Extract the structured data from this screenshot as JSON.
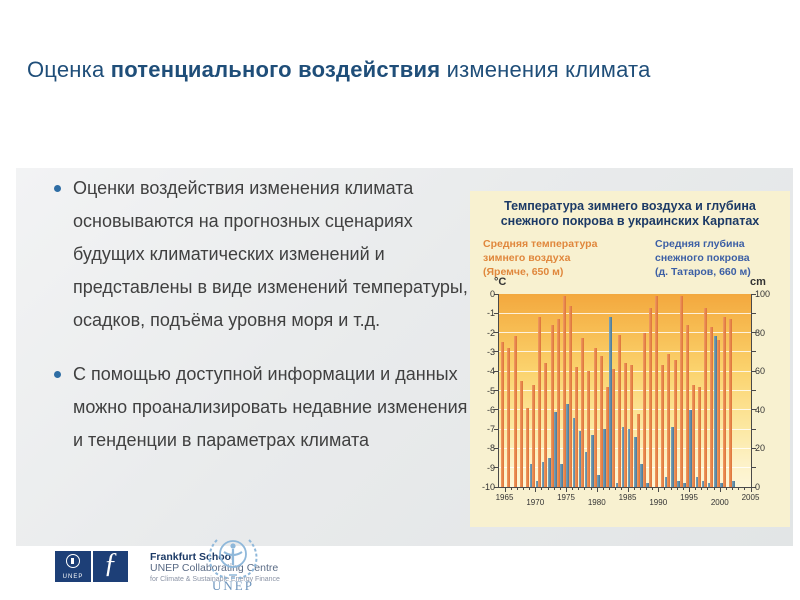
{
  "slide": {
    "title_prefix": "Оценка ",
    "title_bold": "потенциального воздействия",
    "title_suffix": " изменения климата"
  },
  "bullets": [
    "Оценки воздействия изменения климата основываются на прогнозных сценариях будущих климатических изменений и представлены в виде изменений температуры, осадков, подъёма уровня моря и т.д.",
    "С помощью доступной информации и данных можно проанализировать недавние изменения и тенденции в параметрах климата"
  ],
  "chart": {
    "title_line1": "Температура зимнего воздуха и глубина",
    "title_line2": "снежного покрова в украинских Карпатах",
    "legend_temp_l1": "Средняя температура",
    "legend_temp_l2": "зимнего воздуха",
    "legend_temp_l3": "(Яремче, 650 м)",
    "legend_snow_l1": "Средняя глубина",
    "legend_snow_l2": "снежного покрова",
    "legend_snow_l3": "(д. Татаров, 660 м)",
    "unit_left": "°C",
    "unit_right": "cm",
    "colors": {
      "temp_bar": "#dd7338",
      "snow_bar": "#4a7795",
      "legend_temp_text": "#e0873c",
      "legend_snow_text": "#3c5fa5",
      "panel_bg": "#f8f1d0",
      "plot_top": "#f3a83e",
      "plot_bottom": "#fdf6d8"
    }
  },
  "chart_data": {
    "type": "bar",
    "title": "Температура зимнего воздуха и глубина снежного покрова в украинских Карпатах",
    "x": [
      1965,
      1966,
      1967,
      1968,
      1969,
      1970,
      1971,
      1972,
      1973,
      1974,
      1975,
      1976,
      1977,
      1978,
      1979,
      1980,
      1981,
      1982,
      1983,
      1984,
      1985,
      1986,
      1987,
      1988,
      1989,
      1990,
      1991,
      1992,
      1993,
      1994,
      1995,
      1996,
      1997,
      1998,
      1999,
      2000,
      2001,
      2002
    ],
    "series": [
      {
        "name": "Средняя температура зимнего воздуха (Яремче, 650 м)",
        "unit": "°C",
        "color": "#dd7338",
        "values": [
          -2.5,
          -2.8,
          -2.2,
          -4.5,
          -5.9,
          -4.7,
          -1.2,
          -3.6,
          -1.6,
          -1.3,
          -0.1,
          -0.6,
          -3.8,
          -2.3,
          -4.0,
          -2.8,
          -3.2,
          -4.8,
          -3.9,
          -2.1,
          -3.6,
          -3.7,
          -6.2,
          -2.0,
          -0.7,
          -0.1,
          -3.7,
          -3.1,
          -3.4,
          -0.1,
          -1.6,
          -4.7,
          -4.8,
          -0.7,
          -1.7,
          -2.4,
          -1.2,
          -1.3
        ]
      },
      {
        "name": "Средняя глубина снежного покрова (д. Татаров, 660 м)",
        "unit": "cm",
        "color": "#4a7795",
        "values": [
          0,
          0,
          0,
          0,
          12,
          3,
          13,
          15,
          39,
          12,
          43,
          36,
          29,
          18,
          27,
          6,
          30,
          88,
          2,
          31,
          30,
          26,
          12,
          2,
          0,
          0,
          5,
          31,
          3,
          2,
          40,
          5,
          3,
          2,
          78,
          2,
          0,
          3
        ]
      }
    ],
    "left_axis": {
      "unit": "°C",
      "min": -10,
      "max": 0,
      "ticks": [
        0,
        -1,
        -2,
        -3,
        -4,
        -5,
        -6,
        -7,
        -8,
        -9,
        -10
      ]
    },
    "right_axis": {
      "unit": "cm",
      "min": 0,
      "max": 100,
      "ticks": [
        100,
        80,
        60,
        40,
        20,
        0
      ]
    },
    "x_ticks": [
      1965,
      1970,
      1975,
      1980,
      1985,
      1990,
      1995,
      2000,
      2005
    ],
    "x_range": [
      1965,
      2005
    ],
    "grid": true,
    "legend_position": "top"
  },
  "footer": {
    "fs_line1": "Frankfurt School",
    "fs_line2": "UNEP Collaborating Centre",
    "fs_line3": "for Climate & Sustainable Energy Finance",
    "sq_unep_label": "UNEP",
    "sq_fs_glyph": "ƒ",
    "unep_logo_label": "UNEP"
  }
}
